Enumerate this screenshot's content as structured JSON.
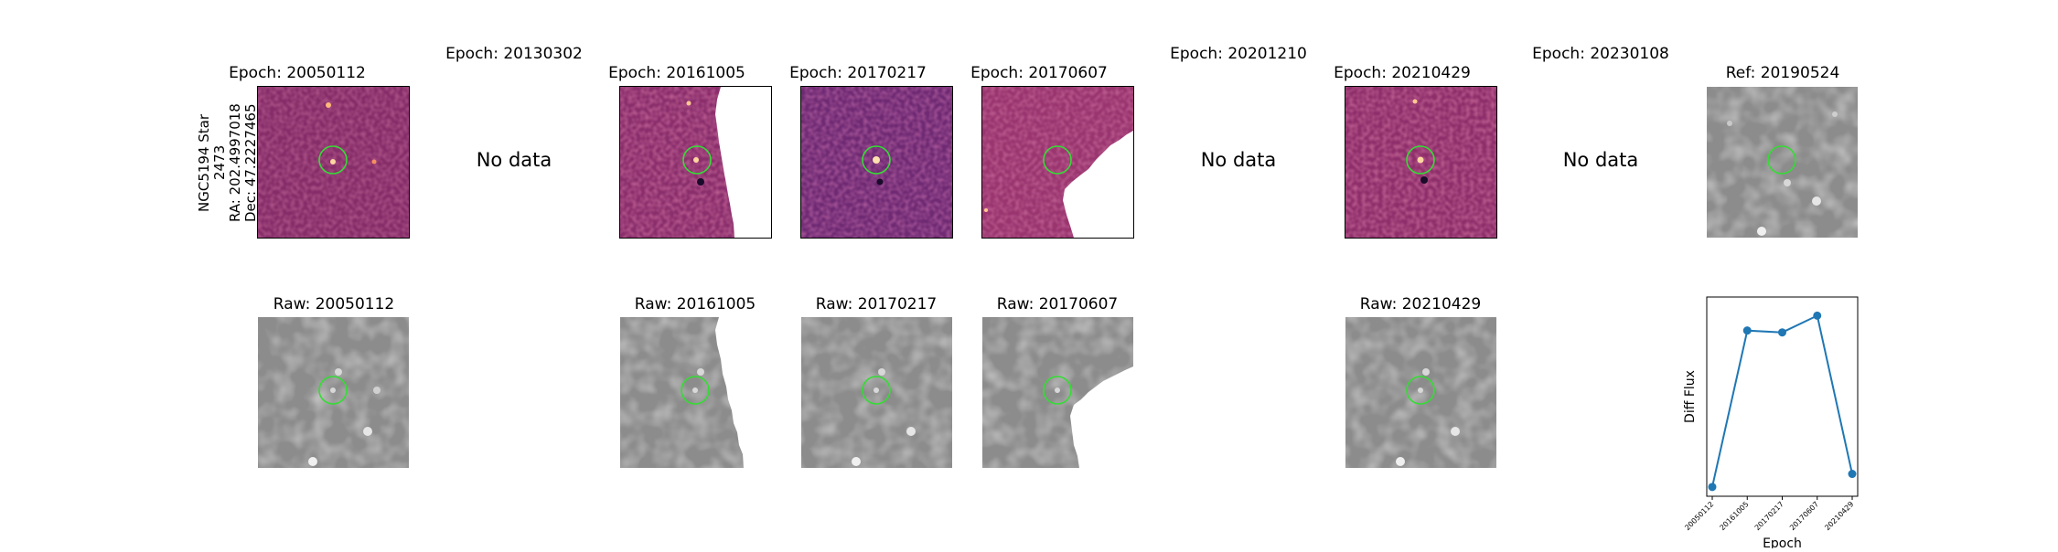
{
  "star_label": [
    "NGC5194 Star 2473",
    "RA: 202.4997018",
    "Dec: 47.2227465"
  ],
  "epoch_titles": [
    "Epoch: 20050112",
    "Epoch: 20130302",
    "Epoch: 20161005",
    "Epoch: 20170217",
    "Epoch: 20170607",
    "Epoch: 20201210",
    "Epoch: 20210429",
    "Epoch: 20230108"
  ],
  "raw_titles": [
    "Raw: 20050112",
    "Raw: 20161005",
    "Raw: 20170217",
    "Raw: 20170607",
    "Raw: 20210429"
  ],
  "ref_title": "Ref: 20190524",
  "no_data_text": "No data",
  "colors": {
    "circle": "#33dd33",
    "line": "#1f77b4"
  },
  "chart_data": {
    "type": "line",
    "title": "",
    "xlabel": "Epoch",
    "ylabel": "Diff Flux",
    "categories": [
      "20050112",
      "20161005",
      "20170217",
      "20170607",
      "20210429"
    ],
    "values": [
      0.0,
      0.84,
      0.83,
      0.92,
      0.07
    ],
    "ylim": [
      -0.05,
      1.02
    ],
    "y_ticks_shown": false,
    "grid": false
  }
}
